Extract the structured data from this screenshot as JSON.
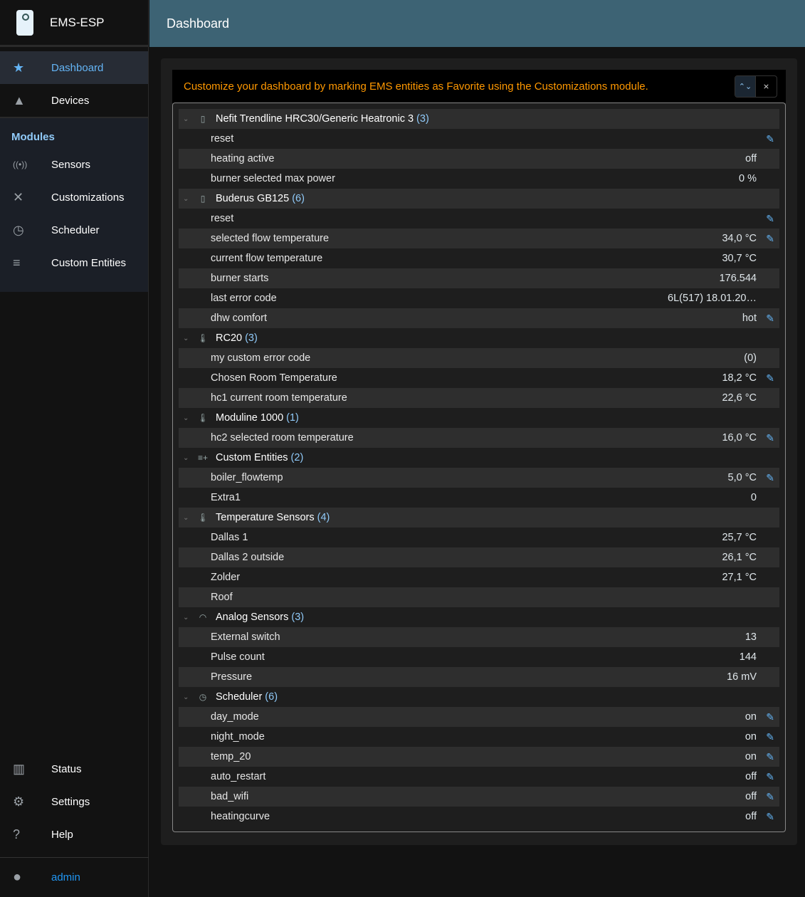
{
  "app": {
    "title": "EMS-ESP",
    "page_title": "Dashboard",
    "user": "admin"
  },
  "nav": {
    "top": [
      {
        "label": "Dashboard",
        "icon": "star-icon",
        "active": true
      },
      {
        "label": "Devices",
        "icon": "category-icon"
      }
    ],
    "modules_header": "Modules",
    "modules": [
      {
        "label": "Sensors",
        "icon": "sensors-icon"
      },
      {
        "label": "Customizations",
        "icon": "tools-icon"
      },
      {
        "label": "Scheduler",
        "icon": "more-time-icon"
      },
      {
        "label": "Custom Entities",
        "icon": "playlist-add-icon"
      }
    ],
    "bottom": [
      {
        "label": "Status",
        "icon": "chart-icon"
      },
      {
        "label": "Settings",
        "icon": "gear-icon"
      },
      {
        "label": "Help",
        "icon": "help-icon"
      }
    ]
  },
  "message": "Customize your dashboard by marking EMS entities as Favorite using the Customizations module.",
  "colors": {
    "accent": "#90caf9",
    "message": "#ff9800",
    "topbar": "#3d6374",
    "edit": "#64b5f6"
  },
  "groups": [
    {
      "name": "Nefit Trendline HRC30/Generic Heatronic 3",
      "count": "(3)",
      "icon": "boiler-icon",
      "entities": [
        {
          "name": "reset",
          "value": "",
          "editable": true
        },
        {
          "name": "heating active",
          "value": "off"
        },
        {
          "name": "burner selected max power",
          "value": "0 %"
        }
      ]
    },
    {
      "name": "Buderus GB125",
      "count": "(6)",
      "icon": "boiler-icon",
      "entities": [
        {
          "name": "reset",
          "value": "",
          "editable": true
        },
        {
          "name": "selected flow temperature",
          "value": "34,0 °C",
          "editable": true
        },
        {
          "name": "current flow temperature",
          "value": "30,7 °C"
        },
        {
          "name": "burner starts",
          "value": "176.544"
        },
        {
          "name": "last error code",
          "value": "6L(517) 18.01.20…"
        },
        {
          "name": "dhw comfort",
          "value": "hot",
          "editable": true
        }
      ]
    },
    {
      "name": "RC20",
      "count": "(3)",
      "icon": "thermostat-auto-icon",
      "entities": [
        {
          "name": "my custom error code",
          "value": "(0)"
        },
        {
          "name": "Chosen Room Temperature",
          "value": "18,2 °C",
          "editable": true
        },
        {
          "name": "hc1 current room temperature",
          "value": "22,6 °C"
        }
      ]
    },
    {
      "name": "Moduline 1000",
      "count": "(1)",
      "icon": "thermostat-auto-icon",
      "entities": [
        {
          "name": "hc2 selected room temperature",
          "value": "16,0 °C",
          "editable": true
        }
      ]
    },
    {
      "name": "Custom Entities",
      "count": "(2)",
      "icon": "playlist-add-icon",
      "entities": [
        {
          "name": "boiler_flowtemp",
          "value": "5,0 °C",
          "editable": true
        },
        {
          "name": "Extra1",
          "value": "0"
        }
      ]
    },
    {
      "name": "Temperature Sensors",
      "count": "(4)",
      "icon": "thermometer-icon",
      "entities": [
        {
          "name": "Dallas 1",
          "value": "25,7 °C"
        },
        {
          "name": "Dallas 2 outside",
          "value": "26,1 °C"
        },
        {
          "name": "Zolder",
          "value": "27,1 °C"
        },
        {
          "name": "Roof",
          "value": ""
        }
      ]
    },
    {
      "name": "Analog Sensors",
      "count": "(3)",
      "icon": "gauge-icon",
      "entities": [
        {
          "name": "External switch",
          "value": "13"
        },
        {
          "name": "Pulse count",
          "value": "144"
        },
        {
          "name": "Pressure",
          "value": "16 mV"
        }
      ]
    },
    {
      "name": "Scheduler",
      "count": "(6)",
      "icon": "more-time-icon",
      "entities": [
        {
          "name": "day_mode",
          "value": "on",
          "editable": true
        },
        {
          "name": "night_mode",
          "value": "on",
          "editable": true
        },
        {
          "name": "temp_20",
          "value": "on",
          "editable": true
        },
        {
          "name": "auto_restart",
          "value": "off",
          "editable": true
        },
        {
          "name": "bad_wifi",
          "value": "off",
          "editable": true
        },
        {
          "name": "heatingcurve",
          "value": "off",
          "editable": true
        }
      ]
    }
  ]
}
